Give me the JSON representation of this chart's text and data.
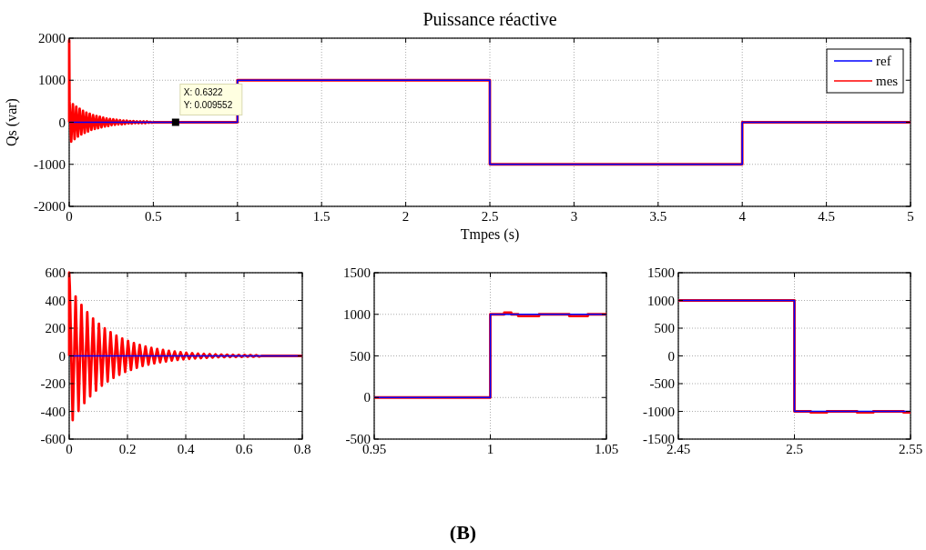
{
  "chart_data": [
    {
      "type": "line",
      "title": "Puissance réactive",
      "xlabel": "Tmpes (s)",
      "ylabel": "Qs (var)",
      "xlim": [
        0,
        5
      ],
      "ylim": [
        -2000,
        2000
      ],
      "xticks": [
        0,
        0.5,
        1,
        1.5,
        2,
        2.5,
        3,
        3.5,
        4,
        4.5,
        5
      ],
      "yticks": [
        -2000,
        -1000,
        0,
        1000,
        2000
      ],
      "grid": true,
      "legend": "top right",
      "annotations": [
        {
          "text": "X: 0.6322\nY: 0.009552",
          "x": 0.6322,
          "y": 0.009552
        },
        "(B)"
      ],
      "series": [
        {
          "name": "ref",
          "color": "#0000ff",
          "x": [
            0,
            1,
            1,
            2.5,
            2.5,
            4,
            4,
            5
          ],
          "values": [
            0,
            0,
            1000,
            1000,
            -1000,
            -1000,
            0,
            0
          ]
        },
        {
          "name": "mes",
          "color": "#ff0000",
          "x": [
            0,
            0,
            0.002,
            0.012,
            0.022,
            0.032,
            0.042,
            0.052,
            0.062,
            0.072,
            0.082,
            0.092,
            0.102,
            0.112,
            0.122,
            0.132,
            0.142,
            0.152,
            0.162,
            0.172,
            0.182,
            0.192,
            0.202,
            0.212,
            0.222,
            0.232,
            0.242,
            0.252,
            0.262,
            0.272,
            0.282,
            0.292,
            0.302,
            0.312,
            0.322,
            0.332,
            0.342,
            0.352,
            0.362,
            0.372,
            0.382,
            0.392,
            0.402,
            0.412,
            0.422,
            0.432,
            0.442,
            0.452,
            0.462,
            0.472,
            0.482,
            0.492,
            0.5,
            1,
            1,
            2.5,
            2.5,
            4,
            4,
            5
          ],
          "values": [
            0,
            1950,
            500,
            -460,
            430,
            -400,
            370,
            -340,
            320,
            -290,
            270,
            -250,
            230,
            -220,
            200,
            -180,
            170,
            -160,
            150,
            -140,
            130,
            -120,
            110,
            -100,
            90,
            -90,
            80,
            -70,
            70,
            -60,
            60,
            -50,
            50,
            -50,
            40,
            -40,
            40,
            -30,
            30,
            -30,
            30,
            -20,
            20,
            -20,
            20,
            -20,
            20,
            -20,
            20,
            -10,
            10,
            -10,
            0,
            0,
            1000,
            1000,
            -1000,
            -1000,
            0,
            0
          ]
        }
      ]
    },
    {
      "type": "line",
      "xlim": [
        0,
        0.8
      ],
      "ylim": [
        -600,
        600
      ],
      "xticks": [
        0,
        0.2,
        0.4,
        0.6,
        0.8
      ],
      "yticks": [
        -600,
        -400,
        -200,
        0,
        200,
        400,
        600
      ],
      "grid": true,
      "series": [
        {
          "color": "#0000ff",
          "x": [
            0,
            0.8
          ],
          "values": [
            0,
            0
          ]
        },
        {
          "color": "#ff0000",
          "x": [
            0,
            0,
            0.002,
            0.012,
            0.022,
            0.032,
            0.042,
            0.052,
            0.062,
            0.072,
            0.082,
            0.092,
            0.102,
            0.112,
            0.122,
            0.132,
            0.142,
            0.152,
            0.162,
            0.172,
            0.182,
            0.192,
            0.202,
            0.212,
            0.222,
            0.232,
            0.242,
            0.252,
            0.262,
            0.272,
            0.282,
            0.292,
            0.302,
            0.312,
            0.322,
            0.332,
            0.342,
            0.352,
            0.362,
            0.372,
            0.382,
            0.392,
            0.402,
            0.412,
            0.422,
            0.432,
            0.442,
            0.452,
            0.462,
            0.472,
            0.482,
            0.492,
            0.502,
            0.512,
            0.522,
            0.532,
            0.542,
            0.552,
            0.562,
            0.572,
            0.582,
            0.592,
            0.602,
            0.612,
            0.622,
            0.632,
            0.642,
            0.652,
            0.66,
            0.8
          ],
          "values": [
            0,
            600,
            500,
            -463,
            429,
            -397,
            368,
            -340,
            315,
            -292,
            270,
            -250,
            232,
            -215,
            199,
            -184,
            171,
            -158,
            146,
            -136,
            126,
            -116,
            108,
            -100,
            92,
            -86,
            79,
            -73,
            68,
            -63,
            58,
            -54,
            50,
            -46,
            43,
            -40,
            37,
            -34,
            32,
            -29,
            27,
            -25,
            23,
            -21,
            20,
            -18,
            17,
            -16,
            15,
            -14,
            13,
            -12,
            11,
            -10,
            10,
            -9,
            9,
            -8,
            8,
            -8,
            7,
            -7,
            7,
            -6,
            6,
            -6,
            5,
            -5,
            0,
            0
          ]
        }
      ]
    },
    {
      "type": "line",
      "xlim": [
        0.95,
        1.05
      ],
      "ylim": [
        -500,
        1500
      ],
      "xticks": [
        0.95,
        1,
        1.05
      ],
      "yticks": [
        -500,
        0,
        500,
        1000,
        1500
      ],
      "grid": true,
      "series": [
        {
          "color": "#0000ff",
          "x": [
            0.95,
            1,
            1,
            1.05
          ],
          "values": [
            0,
            0,
            1000,
            1000
          ]
        },
        {
          "color": "#ff0000",
          "x": [
            0.95,
            1,
            1,
            1.006,
            1.006,
            1.009,
            1.009,
            1.012,
            1.012,
            1.021,
            1.021,
            1.034,
            1.034,
            1.042,
            1.042,
            1.05
          ],
          "values": [
            0,
            0,
            1000,
            1000,
            1020,
            1020,
            1000,
            1000,
            980,
            980,
            1000,
            1000,
            980,
            980,
            1000,
            1000
          ]
        }
      ]
    },
    {
      "type": "line",
      "xlim": [
        2.45,
        2.55
      ],
      "ylim": [
        -1500,
        1500
      ],
      "xticks": [
        2.45,
        2.5,
        2.55
      ],
      "yticks": [
        -1500,
        -1000,
        -500,
        0,
        500,
        1000,
        1500
      ],
      "grid": true,
      "series": [
        {
          "color": "#0000ff",
          "x": [
            2.45,
            2.5,
            2.5,
            2.55
          ],
          "values": [
            1000,
            1000,
            -1000,
            -1000
          ]
        },
        {
          "color": "#ff0000",
          "x": [
            2.45,
            2.5,
            2.5,
            2.507,
            2.507,
            2.514,
            2.514,
            2.527,
            2.527,
            2.534,
            2.534,
            2.547,
            2.547,
            2.55
          ],
          "values": [
            1000,
            1000,
            -1000,
            -1000,
            -1020,
            -1020,
            -1000,
            -1000,
            -1020,
            -1020,
            -1000,
            -1000,
            -1020,
            -1020
          ]
        }
      ]
    }
  ]
}
